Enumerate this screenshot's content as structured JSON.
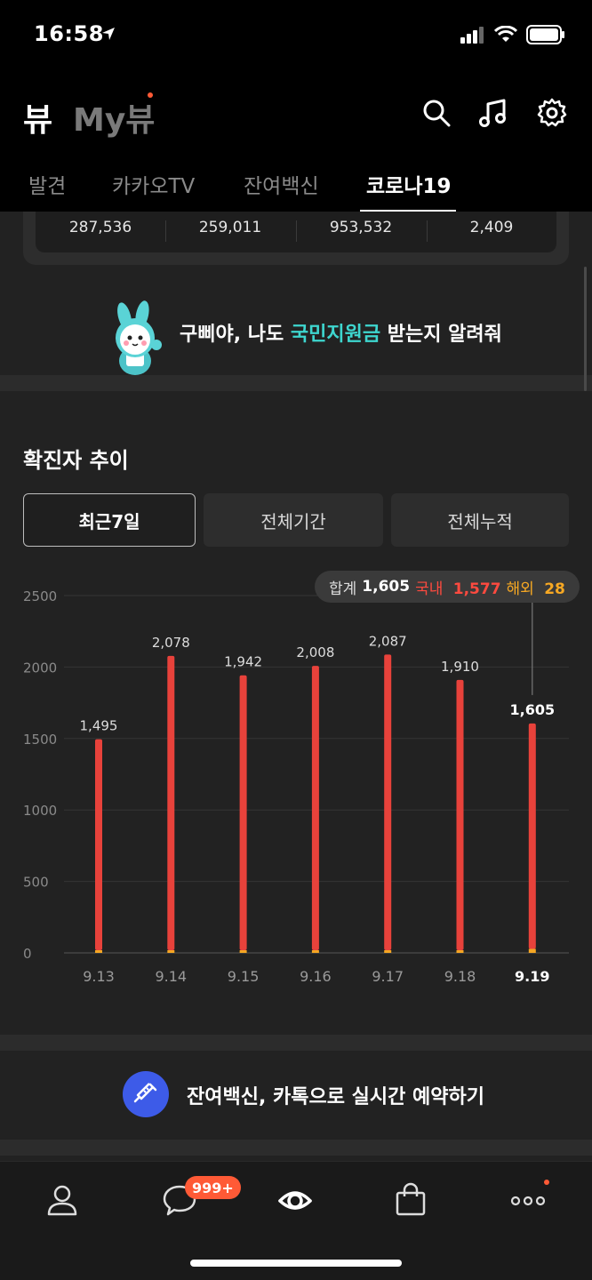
{
  "status_bar": {
    "time": "16:58"
  },
  "header": {
    "logo": "뷰",
    "my_logo": "My뷰",
    "icons": [
      "search-icon",
      "music-icon",
      "gear-icon"
    ],
    "tabs": [
      {
        "label": "발견",
        "active": false
      },
      {
        "label": "카카오TV",
        "active": false
      },
      {
        "label": "잔여백신",
        "active": false
      },
      {
        "label": "코로나19",
        "active": true
      }
    ]
  },
  "stats": [
    "287,536",
    "259,011",
    "953,532",
    "2,409"
  ],
  "banner": {
    "pre": "구삐야, 나도 ",
    "highlight": "국민지원금",
    "post": " 받는지 알려줘"
  },
  "section": {
    "title": "확진자 추이",
    "periods": [
      {
        "label": "최근7일",
        "active": true
      },
      {
        "label": "전체기간",
        "active": false
      },
      {
        "label": "전체누적",
        "active": false
      }
    ]
  },
  "tooltip": {
    "total_label": "합계",
    "total": "1,605",
    "domestic_label": "국내",
    "domestic": "1,577",
    "overseas_label": "해외",
    "overseas": "28"
  },
  "chart_data": {
    "type": "bar",
    "categories": [
      "9.13",
      "9.14",
      "9.15",
      "9.16",
      "9.17",
      "9.18",
      "9.19"
    ],
    "series": [
      {
        "values": [
          1495,
          2078,
          1942,
          2008,
          2087,
          1910,
          1577
        ]
      },
      {
        "values": [
          0,
          0,
          0,
          0,
          0,
          0,
          28
        ]
      }
    ],
    "totals": [
      1495,
      2078,
      1942,
      2008,
      2087,
      1910,
      1605
    ],
    "labels": [
      "1,495",
      "2,078",
      "1,942",
      "2,008",
      "2,087",
      "1,910",
      "1,605"
    ],
    "yticks": [
      "0",
      "500",
      "1000",
      "1500",
      "2000",
      "2500"
    ],
    "ylim": [
      0,
      2500
    ],
    "selected_index": 6,
    "colors": {
      "domestic": "#e8423b",
      "overseas": "#f5a623"
    },
    "grid": true
  },
  "vaccine_banner": {
    "text": "잔여백신, 카톡으로 실시간 예약하기"
  },
  "bottom_nav": {
    "badge": "999+"
  }
}
